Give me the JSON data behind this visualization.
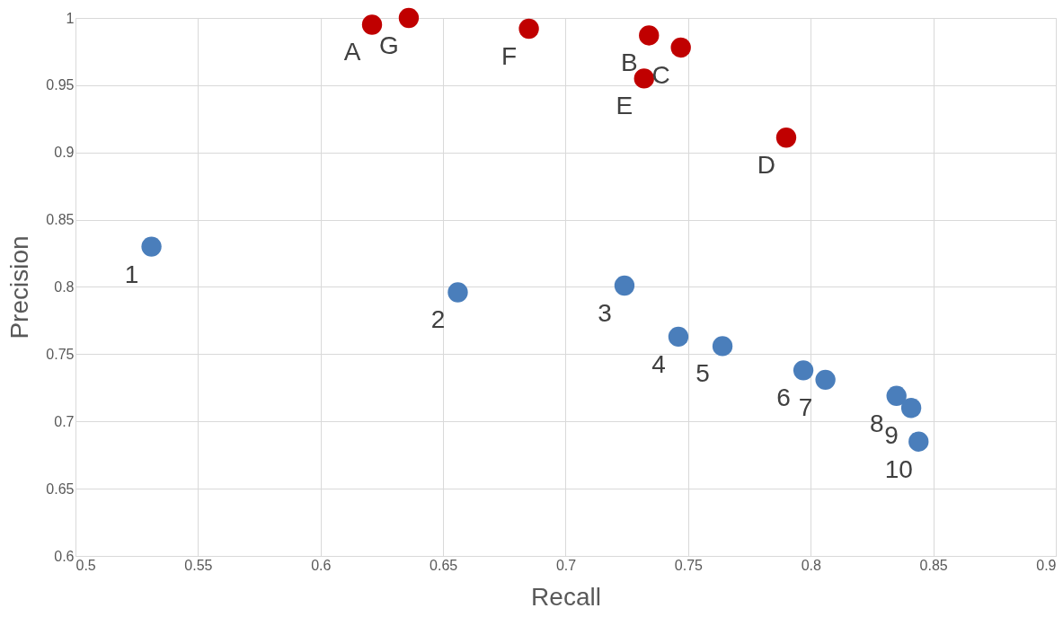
{
  "chart_data": {
    "type": "scatter",
    "xlabel": "Recall",
    "ylabel": "Precision",
    "xlim": [
      0.5,
      0.9
    ],
    "xticks": [
      0.5,
      0.55,
      0.6,
      0.65,
      0.7,
      0.75,
      0.8,
      0.85,
      0.9
    ],
    "ylim": [
      0.6,
      1
    ],
    "yticks": [
      0.6,
      0.65,
      0.7,
      0.75,
      0.8,
      0.85,
      0.9,
      0.95,
      1
    ],
    "grid": true,
    "marker": "circle",
    "series": [
      {
        "color": "#c00000",
        "x": [
          0.621,
          0.636,
          0.685,
          0.734,
          0.747,
          0.732,
          0.79
        ],
        "values": [
          0.995,
          1.0,
          0.992,
          0.987,
          0.978,
          0.955,
          0.911
        ]
      },
      {
        "color": "#4a7ebb",
        "x": [
          0.531,
          0.656,
          0.724,
          0.746,
          0.764,
          0.797,
          0.806,
          0.835,
          0.841,
          0.844
        ],
        "values": [
          0.83,
          0.796,
          0.801,
          0.763,
          0.756,
          0.738,
          0.731,
          0.719,
          0.71,
          0.685
        ]
      }
    ],
    "annotations": [
      {
        "text": "A",
        "x": 0.621,
        "y": 0.995
      },
      {
        "text": "G",
        "x": 0.636,
        "y": 1.0
      },
      {
        "text": "F",
        "x": 0.685,
        "y": 0.992
      },
      {
        "text": "B",
        "x": 0.734,
        "y": 0.987
      },
      {
        "text": "C",
        "x": 0.747,
        "y": 0.978
      },
      {
        "text": "E",
        "x": 0.732,
        "y": 0.955
      },
      {
        "text": "D",
        "x": 0.79,
        "y": 0.911
      },
      {
        "text": "1",
        "x": 0.531,
        "y": 0.83
      },
      {
        "text": "2",
        "x": 0.656,
        "y": 0.796
      },
      {
        "text": "3",
        "x": 0.724,
        "y": 0.801
      },
      {
        "text": "4",
        "x": 0.746,
        "y": 0.763
      },
      {
        "text": "5",
        "x": 0.764,
        "y": 0.756
      },
      {
        "text": "6",
        "x": 0.797,
        "y": 0.738
      },
      {
        "text": "7",
        "x": 0.806,
        "y": 0.731
      },
      {
        "text": "8",
        "x": 0.835,
        "y": 0.719
      },
      {
        "text": "9",
        "x": 0.841,
        "y": 0.71
      },
      {
        "text": "10",
        "x": 0.844,
        "y": 0.685
      }
    ]
  }
}
